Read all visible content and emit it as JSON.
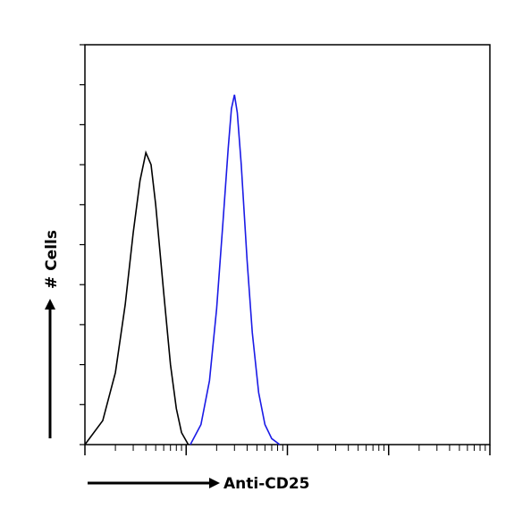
{
  "chart_data": {
    "type": "line",
    "x_label": "Anti-CD25",
    "y_label": "# Cells",
    "xscale": "log",
    "xlim": [
      1,
      10000
    ],
    "xticks": [
      1,
      10,
      100,
      1000,
      10000
    ],
    "xminorticks": [
      2,
      3,
      4,
      5,
      6,
      7,
      8,
      9,
      20,
      30,
      40,
      50,
      60,
      70,
      80,
      90,
      200,
      300,
      400,
      500,
      600,
      700,
      800,
      900,
      2000,
      3000,
      4000,
      5000,
      6000,
      7000,
      8000,
      9000
    ],
    "ylim": [
      0,
      10
    ],
    "yticks": [
      0,
      1,
      2,
      3,
      4,
      5,
      6,
      7,
      8,
      9,
      10
    ],
    "series": [
      {
        "color": "#000000",
        "x": [
          1,
          1.5,
          2,
          2.5,
          3,
          3.5,
          4,
          4.5,
          5,
          6,
          7,
          8,
          9,
          10.5
        ],
        "values": [
          0,
          0.6,
          1.8,
          3.5,
          5.3,
          6.6,
          7.3,
          7.0,
          6.0,
          3.8,
          2.0,
          0.9,
          0.3,
          0
        ]
      },
      {
        "color": "#1a1ae6",
        "x": [
          11,
          14,
          17,
          20,
          23,
          26,
          28,
          30,
          32,
          35,
          40,
          45,
          52,
          60,
          70,
          84
        ],
        "values": [
          0,
          0.5,
          1.6,
          3.4,
          5.5,
          7.4,
          8.4,
          8.75,
          8.3,
          7.0,
          4.6,
          2.8,
          1.3,
          0.5,
          0.15,
          0
        ]
      }
    ]
  }
}
